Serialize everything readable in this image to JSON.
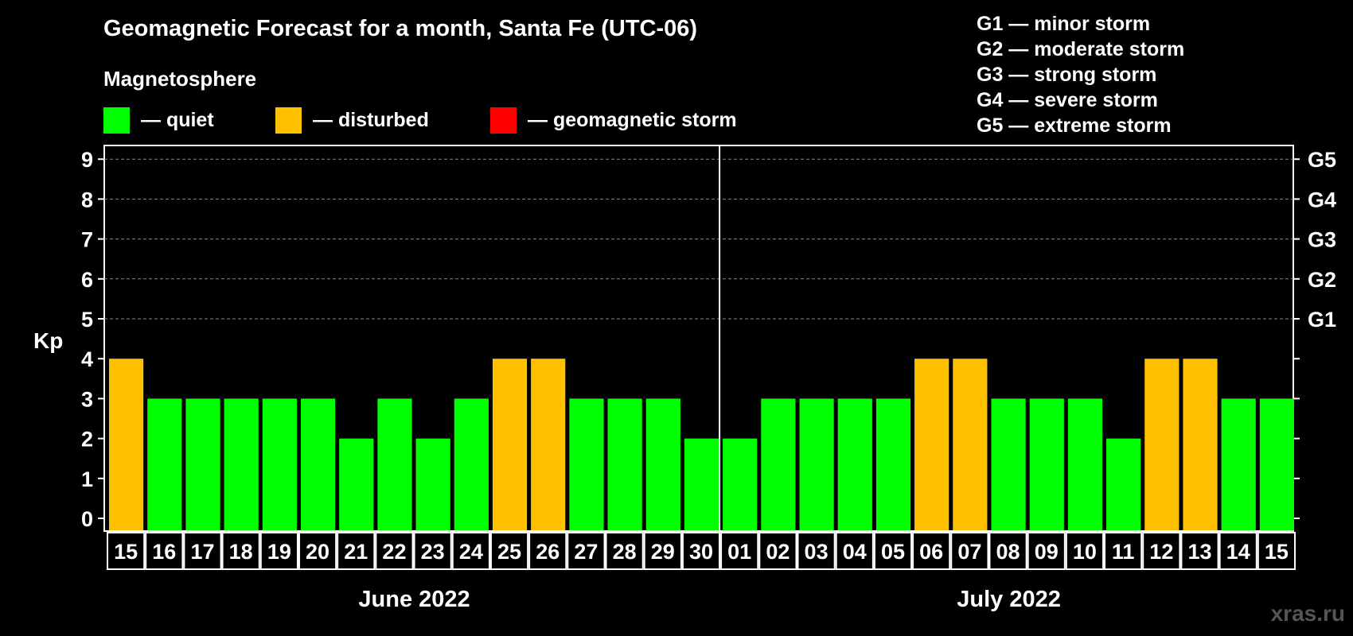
{
  "chart_data": {
    "type": "bar",
    "title": "Geomagnetic Forecast for a month, Santa Fe (UTC-06)",
    "ylabel": "Kp",
    "ylim": [
      0,
      9
    ],
    "yticks": [
      "0",
      "1",
      "2",
      "3",
      "4",
      "5",
      "6",
      "7",
      "8",
      "9"
    ],
    "right_axis": [
      {
        "value": 5,
        "label": "G1"
      },
      {
        "value": 6,
        "label": "G2"
      },
      {
        "value": 7,
        "label": "G3"
      },
      {
        "value": 8,
        "label": "G4"
      },
      {
        "value": 9,
        "label": "G5"
      }
    ],
    "categories": [
      "15",
      "16",
      "17",
      "18",
      "19",
      "20",
      "21",
      "22",
      "23",
      "24",
      "25",
      "26",
      "27",
      "28",
      "29",
      "30",
      "01",
      "02",
      "03",
      "04",
      "05",
      "06",
      "07",
      "08",
      "09",
      "10",
      "11",
      "12",
      "13",
      "14",
      "15"
    ],
    "values": [
      4,
      3,
      3,
      3,
      3,
      3,
      2,
      3,
      2,
      3,
      4,
      4,
      3,
      3,
      3,
      2,
      2,
      3,
      3,
      3,
      3,
      4,
      4,
      3,
      3,
      3,
      2,
      4,
      4,
      3,
      3
    ],
    "months": [
      {
        "label": "June 2022",
        "count": 16
      },
      {
        "label": "July 2022",
        "count": 15
      }
    ],
    "grid": true,
    "legend": {
      "heading": "Magnetosphere",
      "items": [
        {
          "label": "— quiet",
          "color": "#00ff00"
        },
        {
          "label": "— disturbed",
          "color": "#ffc000"
        },
        {
          "label": "— geomagnetic storm",
          "color": "#ff0000"
        }
      ]
    },
    "storm_levels": [
      "G1 — minor storm",
      "G2 — moderate storm",
      "G3 — strong storm",
      "G4 — severe storm",
      "G5 — extreme storm"
    ]
  },
  "colors": {
    "quiet": "#00ff00",
    "disturbed": "#ffc000",
    "storm": "#ff0000",
    "background": "#000000",
    "grid": "#888888"
  },
  "watermark": "xras.ru"
}
